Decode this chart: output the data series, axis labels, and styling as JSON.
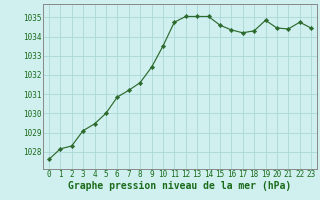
{
  "x": [
    0,
    1,
    2,
    3,
    4,
    5,
    6,
    7,
    8,
    9,
    10,
    11,
    12,
    13,
    14,
    15,
    16,
    17,
    18,
    19,
    20,
    21,
    22,
    23
  ],
  "y": [
    1027.6,
    1028.15,
    1028.3,
    1029.1,
    1029.45,
    1030.0,
    1030.85,
    1031.2,
    1031.6,
    1032.4,
    1033.5,
    1034.75,
    1035.05,
    1035.05,
    1035.05,
    1034.6,
    1034.35,
    1034.2,
    1034.3,
    1034.85,
    1034.45,
    1034.4,
    1034.75,
    1034.45
  ],
  "line_color": "#2d6a2d",
  "marker": "D",
  "marker_size": 2.2,
  "bg_color": "#d0f0f0",
  "grid_color": "#aad8d8",
  "xlabel": "Graphe pression niveau de la mer (hPa)",
  "xlabel_color": "#1a6b1a",
  "ylabel_ticks": [
    1028,
    1029,
    1030,
    1031,
    1032,
    1033,
    1034,
    1035
  ],
  "ylim": [
    1027.1,
    1035.7
  ],
  "xlim": [
    -0.5,
    23.5
  ],
  "xticks": [
    0,
    1,
    2,
    3,
    4,
    5,
    6,
    7,
    8,
    9,
    10,
    11,
    12,
    13,
    14,
    15,
    16,
    17,
    18,
    19,
    20,
    21,
    22,
    23
  ],
  "tick_fontsize": 5.5,
  "xlabel_fontsize": 7.0,
  "axis_color": "#1a6b1a",
  "spine_color": "#888888",
  "linewidth": 0.85
}
